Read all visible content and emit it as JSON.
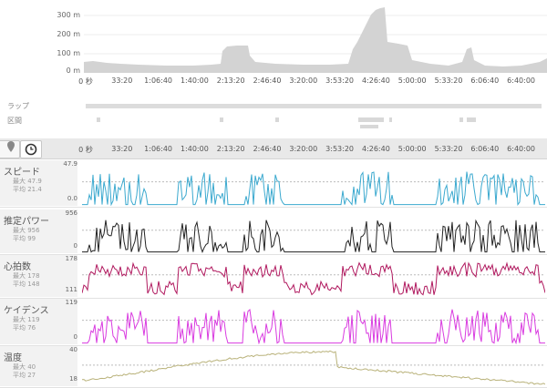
{
  "elevation": {
    "y_labels": [
      "300 m",
      "200 m",
      "100 m",
      "0 m"
    ],
    "x_labels": [
      "0 秒",
      "33:20",
      "1:06:40",
      "1:40:00",
      "2:13:20",
      "2:46:40",
      "3:20:00",
      "3:53:20",
      "4:26:40",
      "5:00:00",
      "5:33:20",
      "6:06:40",
      "6:40:00"
    ]
  },
  "laps_label": "ラップ",
  "intervals_label": "区間",
  "time_axis": [
    "0 秒",
    "33:20",
    "1:06:40",
    "1:40:00",
    "2:13:20",
    "2:46:40",
    "3:20:00",
    "3:53:20",
    "4:26:40",
    "5:00:00",
    "5:33:20",
    "6:06:40",
    "6:40:00"
  ],
  "toolbar": {
    "map_icon": "map-pin-icon",
    "clock_icon": "clock-icon"
  },
  "metrics": [
    {
      "id": "speed",
      "name": "スピード",
      "max_label": "最大 47.9",
      "avg_label": "平均 21.4",
      "top": "47.9",
      "bottom": "0.0",
      "color": "#3ba9cf"
    },
    {
      "id": "power",
      "name": "推定パワー",
      "max_label": "最大 956",
      "avg_label": "平均 99",
      "top": "956",
      "bottom": "0",
      "color": "#222222"
    },
    {
      "id": "hr",
      "name": "心拍数",
      "max_label": "最大 178",
      "avg_label": "平均 148",
      "top": "178",
      "bottom": "111",
      "color": "#b0185e"
    },
    {
      "id": "cadence",
      "name": "ケイデンス",
      "max_label": "最大 119",
      "avg_label": "平均 76",
      "top": "119",
      "bottom": "0",
      "color": "#d93be0"
    },
    {
      "id": "temp",
      "name": "温度",
      "max_label": "最大 40",
      "avg_label": "平均 27",
      "top": "40",
      "bottom": "18",
      "color": "#b9b27a"
    }
  ]
}
